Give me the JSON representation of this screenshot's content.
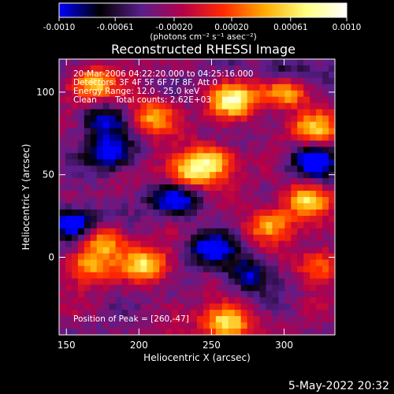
{
  "chart_data": {
    "type": "heatmap",
    "title": "Reconstructed RHESSI Image",
    "xlabel": "Heliocentric X (arcsec)",
    "ylabel": "Heliocentric Y (arcsec)",
    "xlim": [
      145,
      335
    ],
    "ylim": [
      -47,
      120
    ],
    "x_ticks": [
      150,
      200,
      250,
      300
    ],
    "y_ticks": [
      0,
      50,
      100
    ],
    "colorbar": {
      "range": [
        -0.001,
        0.001
      ],
      "tick_values": [
        -0.001,
        -0.00061,
        -0.0002,
        0.0002,
        0.00061,
        0.001
      ],
      "tick_labels": [
        "-0.0010",
        "-0.00061",
        "-0.00020",
        "0.00020",
        "0.00061",
        "0.0010"
      ],
      "unit_label": "(photons cm⁻² s⁻¹ asec⁻²)",
      "colormap": [
        "#0000ff",
        "#000000",
        "#5a1e8c",
        "#b4004a",
        "#ff2a00",
        "#ffaa00",
        "#ffff80",
        "#ffffff"
      ]
    },
    "annotations": {
      "time_range": "20-Mar-2006 04:22:20.000 to 04:25:16.000",
      "detectors": "Detectors: 3F 4F 5F 6F 7F 8F, Att 0",
      "energy_range": "Energy Range: 12.0 - 25.0 keV",
      "method": "Clean",
      "total_counts": "Total counts: 2.62E+03",
      "peak": "Position of Peak = [260,-47]"
    },
    "bright_regions": [
      {
        "x": 265,
        "y": 95,
        "level": 0.95
      },
      {
        "x": 250,
        "y": 58,
        "level": 0.9
      },
      {
        "x": 232,
        "y": 50,
        "level": 0.75
      },
      {
        "x": 300,
        "y": 100,
        "level": 0.8
      },
      {
        "x": 168,
        "y": 105,
        "level": 0.8
      },
      {
        "x": 210,
        "y": 85,
        "level": 0.7
      },
      {
        "x": 290,
        "y": 20,
        "level": 0.7
      },
      {
        "x": 315,
        "y": 35,
        "level": 0.8
      },
      {
        "x": 205,
        "y": -5,
        "level": 0.85
      },
      {
        "x": 165,
        "y": -5,
        "level": 0.65
      },
      {
        "x": 175,
        "y": 10,
        "level": 0.7
      },
      {
        "x": 320,
        "y": 78,
        "level": 0.7
      },
      {
        "x": 325,
        "y": -5,
        "level": 0.6
      },
      {
        "x": 260,
        "y": -40,
        "level": 1.0
      }
    ],
    "dark_regions": [
      {
        "x": 155,
        "y": 20,
        "level": -0.9
      },
      {
        "x": 225,
        "y": 35,
        "level": -0.8
      },
      {
        "x": 180,
        "y": 62,
        "level": -0.7
      },
      {
        "x": 320,
        "y": 58,
        "level": -0.8
      },
      {
        "x": 250,
        "y": 5,
        "level": -0.7
      },
      {
        "x": 275,
        "y": -10,
        "level": -0.6
      },
      {
        "x": 300,
        "y": 112,
        "level": -0.5
      },
      {
        "x": 175,
        "y": 82,
        "level": -0.6
      }
    ]
  },
  "footer": {
    "timestamp": "5-May-2022 20:32"
  }
}
